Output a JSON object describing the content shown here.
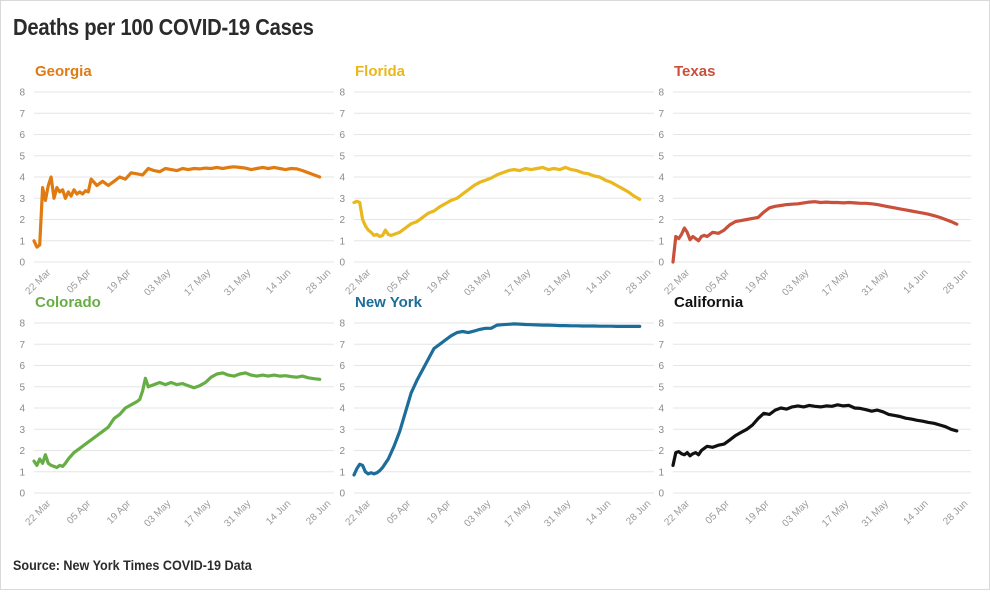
{
  "title": "Deaths per 100 COVID-19 Cases",
  "source": "Source: New York Times COVID-19 Data",
  "chart_data": [
    {
      "type": "line",
      "title": "Georgia",
      "color": "#e07b12",
      "ylim": [
        0,
        8
      ],
      "yticks": [
        "0",
        "1",
        "2",
        "3",
        "4",
        "5",
        "6",
        "7",
        "8"
      ],
      "xticks": [
        "22 Mar",
        "05 Apr",
        "19 Apr",
        "03 May",
        "17 May",
        "31 May",
        "14 Jun",
        "28 Jun"
      ],
      "xlim": [
        -6,
        99
      ],
      "x": [
        -6,
        -5,
        -4,
        -3,
        -2,
        -1,
        0,
        1,
        2,
        3,
        4,
        5,
        6,
        7,
        8,
        9,
        10,
        11,
        12,
        13,
        14,
        16,
        18,
        20,
        22,
        24,
        26,
        28,
        30,
        32,
        34,
        36,
        38,
        40,
        42,
        44,
        46,
        48,
        50,
        52,
        54,
        56,
        58,
        60,
        62,
        64,
        66,
        68,
        70,
        72,
        74,
        76,
        78,
        80,
        82,
        84,
        86,
        88,
        90,
        92,
        94
      ],
      "y": [
        1.0,
        0.7,
        0.8,
        3.5,
        2.9,
        3.6,
        4.0,
        3.0,
        3.5,
        3.3,
        3.4,
        3.0,
        3.3,
        3.1,
        3.4,
        3.2,
        3.3,
        3.2,
        3.35,
        3.3,
        3.9,
        3.6,
        3.8,
        3.6,
        3.8,
        4.0,
        3.9,
        4.2,
        4.15,
        4.1,
        4.4,
        4.3,
        4.25,
        4.4,
        4.35,
        4.3,
        4.4,
        4.35,
        4.4,
        4.38,
        4.42,
        4.4,
        4.45,
        4.4,
        4.45,
        4.48,
        4.45,
        4.42,
        4.35,
        4.4,
        4.45,
        4.4,
        4.45,
        4.4,
        4.35,
        4.4,
        4.38,
        4.3,
        4.2,
        4.1,
        4.0
      ]
    },
    {
      "type": "line",
      "title": "Florida",
      "color": "#e8b81d",
      "ylim": [
        0,
        8
      ],
      "yticks": [
        "0",
        "1",
        "2",
        "3",
        "4",
        "5",
        "6",
        "7",
        "8"
      ],
      "xticks": [
        "22 Mar",
        "05 Apr",
        "19 Apr",
        "03 May",
        "17 May",
        "31 May",
        "14 Jun",
        "28 Jun"
      ],
      "xlim": [
        -6,
        99
      ],
      "x": [
        -6,
        -5,
        -4,
        -3,
        -2,
        -1,
        0,
        1,
        2,
        3,
        4,
        5,
        6,
        7,
        8,
        10,
        12,
        14,
        16,
        18,
        20,
        22,
        24,
        26,
        28,
        30,
        32,
        34,
        36,
        38,
        40,
        42,
        44,
        46,
        48,
        50,
        52,
        54,
        56,
        58,
        60,
        62,
        64,
        66,
        68,
        70,
        72,
        74,
        76,
        78,
        80,
        82,
        84,
        86,
        88,
        90,
        92,
        94
      ],
      "y": [
        2.8,
        2.85,
        2.8,
        2.0,
        1.7,
        1.5,
        1.4,
        1.25,
        1.3,
        1.2,
        1.25,
        1.5,
        1.3,
        1.25,
        1.3,
        1.4,
        1.6,
        1.8,
        1.9,
        2.1,
        2.3,
        2.4,
        2.6,
        2.75,
        2.9,
        3.0,
        3.2,
        3.4,
        3.6,
        3.75,
        3.85,
        3.95,
        4.1,
        4.2,
        4.3,
        4.35,
        4.3,
        4.4,
        4.35,
        4.4,
        4.45,
        4.35,
        4.4,
        4.35,
        4.45,
        4.35,
        4.3,
        4.2,
        4.15,
        4.05,
        4.0,
        3.85,
        3.75,
        3.6,
        3.45,
        3.3,
        3.1,
        2.95
      ]
    },
    {
      "type": "line",
      "title": "Texas",
      "color": "#c9503b",
      "ylim": [
        0,
        8
      ],
      "yticks": [
        "0",
        "1",
        "2",
        "3",
        "4",
        "5",
        "6",
        "7",
        "8"
      ],
      "xticks": [
        "22 Mar",
        "05 Apr",
        "19 Apr",
        "03 May",
        "17 May",
        "31 May",
        "14 Jun",
        "28 Jun"
      ],
      "xlim": [
        -6,
        99
      ],
      "x": [
        -6,
        -5,
        -4,
        -3,
        -2,
        -1,
        0,
        1,
        2,
        3,
        4,
        5,
        6,
        8,
        10,
        12,
        14,
        16,
        18,
        20,
        22,
        24,
        26,
        28,
        30,
        32,
        34,
        36,
        38,
        40,
        42,
        44,
        46,
        48,
        50,
        52,
        54,
        56,
        58,
        60,
        62,
        64,
        66,
        68,
        70,
        72,
        74,
        76,
        78,
        80,
        82,
        84,
        86,
        88,
        90,
        92,
        94
      ],
      "y": [
        0.0,
        1.2,
        1.1,
        1.3,
        1.6,
        1.4,
        1.05,
        1.2,
        1.1,
        1.0,
        1.2,
        1.25,
        1.2,
        1.4,
        1.35,
        1.5,
        1.75,
        1.9,
        1.95,
        2.0,
        2.05,
        2.1,
        2.35,
        2.55,
        2.62,
        2.66,
        2.7,
        2.72,
        2.74,
        2.78,
        2.82,
        2.84,
        2.8,
        2.82,
        2.8,
        2.8,
        2.78,
        2.8,
        2.78,
        2.76,
        2.76,
        2.74,
        2.7,
        2.65,
        2.6,
        2.55,
        2.5,
        2.45,
        2.4,
        2.35,
        2.3,
        2.25,
        2.18,
        2.1,
        2.0,
        1.9,
        1.78
      ]
    },
    {
      "type": "line",
      "title": "Colorado",
      "color": "#67ad45",
      "ylim": [
        0,
        8
      ],
      "yticks": [
        "0",
        "1",
        "2",
        "3",
        "4",
        "5",
        "6",
        "7",
        "8"
      ],
      "xticks": [
        "22 Mar",
        "05 Apr",
        "19 Apr",
        "03 May",
        "17 May",
        "31 May",
        "14 Jun",
        "28 Jun"
      ],
      "xlim": [
        -6,
        99
      ],
      "x": [
        -6,
        -5,
        -4,
        -3,
        -2,
        -1,
        0,
        1,
        2,
        3,
        4,
        5,
        6,
        8,
        10,
        12,
        14,
        16,
        18,
        20,
        22,
        24,
        26,
        28,
        30,
        31,
        32,
        33,
        34,
        36,
        38,
        40,
        42,
        44,
        46,
        48,
        50,
        52,
        54,
        56,
        58,
        60,
        62,
        64,
        66,
        68,
        70,
        72,
        74,
        76,
        78,
        80,
        82,
        84,
        86,
        88,
        90,
        92,
        94
      ],
      "y": [
        1.5,
        1.3,
        1.6,
        1.4,
        1.8,
        1.4,
        1.3,
        1.25,
        1.2,
        1.3,
        1.25,
        1.4,
        1.6,
        1.9,
        2.1,
        2.3,
        2.5,
        2.7,
        2.9,
        3.1,
        3.5,
        3.7,
        4.0,
        4.15,
        4.3,
        4.4,
        4.8,
        5.4,
        5.0,
        5.1,
        5.2,
        5.1,
        5.2,
        5.1,
        5.15,
        5.05,
        4.95,
        5.05,
        5.2,
        5.45,
        5.6,
        5.65,
        5.55,
        5.5,
        5.6,
        5.65,
        5.55,
        5.5,
        5.55,
        5.5,
        5.55,
        5.5,
        5.52,
        5.48,
        5.45,
        5.5,
        5.42,
        5.38,
        5.35
      ]
    },
    {
      "type": "line",
      "title": "New York",
      "color": "#1c6d99",
      "ylim": [
        0,
        8
      ],
      "yticks": [
        "0",
        "1",
        "2",
        "3",
        "4",
        "5",
        "6",
        "7",
        "8"
      ],
      "xticks": [
        "22 Mar",
        "05 Apr",
        "19 Apr",
        "03 May",
        "17 May",
        "31 May",
        "14 Jun",
        "28 Jun"
      ],
      "xlim": [
        -6,
        99
      ],
      "x": [
        -6,
        -5,
        -4,
        -3,
        -2,
        -1,
        0,
        1,
        2,
        3,
        4,
        5,
        6,
        8,
        10,
        12,
        14,
        16,
        18,
        20,
        22,
        24,
        26,
        28,
        30,
        32,
        34,
        36,
        38,
        40,
        42,
        44,
        46,
        48,
        50,
        52,
        54,
        56,
        58,
        60,
        62,
        64,
        66,
        68,
        70,
        72,
        74,
        76,
        78,
        80,
        82,
        84,
        86,
        88,
        90,
        92,
        94
      ],
      "y": [
        0.85,
        1.15,
        1.35,
        1.3,
        1.0,
        0.9,
        0.95,
        0.9,
        0.95,
        1.05,
        1.2,
        1.4,
        1.6,
        2.2,
        2.9,
        3.8,
        4.7,
        5.3,
        5.8,
        6.3,
        6.8,
        7.0,
        7.2,
        7.4,
        7.55,
        7.6,
        7.55,
        7.62,
        7.7,
        7.75,
        7.75,
        7.9,
        7.92,
        7.94,
        7.96,
        7.95,
        7.93,
        7.92,
        7.91,
        7.9,
        7.9,
        7.89,
        7.88,
        7.88,
        7.87,
        7.87,
        7.86,
        7.86,
        7.86,
        7.85,
        7.85,
        7.85,
        7.84,
        7.84,
        7.84,
        7.84,
        7.84
      ]
    },
    {
      "type": "line",
      "title": "California",
      "color": "#111111",
      "ylim": [
        0,
        8
      ],
      "yticks": [
        "0",
        "1",
        "2",
        "3",
        "4",
        "5",
        "6",
        "7",
        "8"
      ],
      "xticks": [
        "22 Mar",
        "05 Apr",
        "19 Apr",
        "03 May",
        "17 May",
        "31 May",
        "14 Jun",
        "28 Jun"
      ],
      "xlim": [
        -6,
        99
      ],
      "x": [
        -6,
        -5,
        -4,
        -3,
        -2,
        -1,
        0,
        1,
        2,
        3,
        4,
        5,
        6,
        8,
        10,
        12,
        14,
        16,
        18,
        20,
        22,
        24,
        26,
        28,
        30,
        32,
        34,
        36,
        38,
        40,
        42,
        44,
        46,
        48,
        50,
        52,
        54,
        56,
        58,
        60,
        62,
        64,
        66,
        68,
        70,
        72,
        74,
        76,
        78,
        80,
        82,
        84,
        86,
        88,
        90,
        92,
        94
      ],
      "y": [
        1.3,
        1.9,
        1.95,
        1.85,
        1.8,
        1.9,
        1.75,
        1.85,
        1.9,
        1.8,
        2.0,
        2.1,
        2.2,
        2.15,
        2.25,
        2.3,
        2.5,
        2.7,
        2.85,
        3.0,
        3.2,
        3.5,
        3.75,
        3.7,
        3.9,
        4.0,
        3.95,
        4.05,
        4.1,
        4.05,
        4.12,
        4.08,
        4.05,
        4.1,
        4.08,
        4.15,
        4.1,
        4.12,
        4.0,
        3.98,
        3.92,
        3.85,
        3.9,
        3.82,
        3.7,
        3.65,
        3.6,
        3.52,
        3.48,
        3.42,
        3.38,
        3.32,
        3.28,
        3.2,
        3.12,
        3.0,
        2.92
      ]
    }
  ]
}
